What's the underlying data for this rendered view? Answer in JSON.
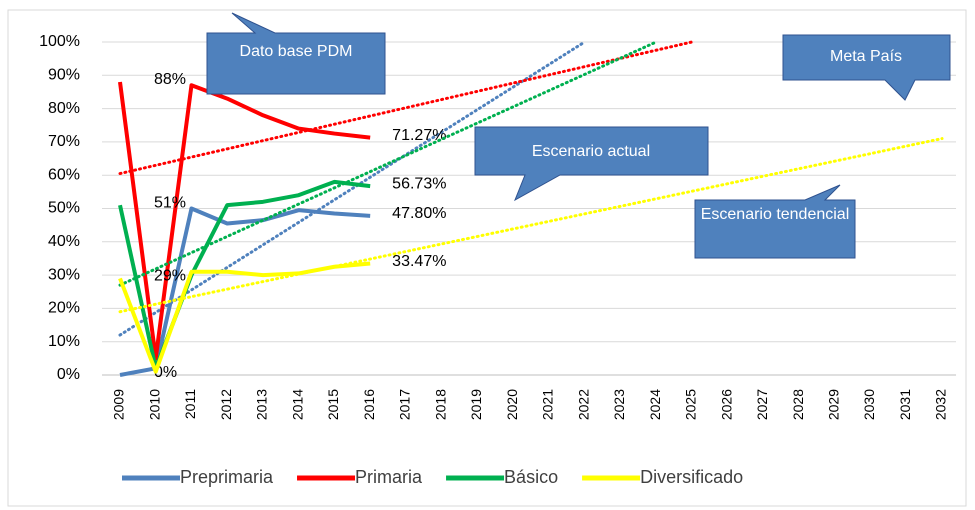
{
  "chart_data": {
    "type": "line",
    "categories": [
      "2009",
      "2010",
      "2011",
      "2012",
      "2013",
      "2014",
      "2015",
      "2016",
      "2017",
      "2018",
      "2019",
      "2020",
      "2021",
      "2022",
      "2023",
      "2024",
      "2025",
      "2026",
      "2027",
      "2028",
      "2029",
      "2030",
      "2031",
      "2032"
    ],
    "ylim": [
      0,
      100
    ],
    "yticks": [
      {
        "value": 0,
        "label": "0%"
      },
      {
        "value": 10,
        "label": "10%"
      },
      {
        "value": 20,
        "label": "20%"
      },
      {
        "value": 30,
        "label": "30%"
      },
      {
        "value": 40,
        "label": "40%"
      },
      {
        "value": 50,
        "label": "50%"
      },
      {
        "value": 60,
        "label": "60%"
      },
      {
        "value": 70,
        "label": "70%"
      },
      {
        "value": 80,
        "label": "80%"
      },
      {
        "value": 90,
        "label": "90%"
      },
      {
        "value": 100,
        "label": "100%"
      }
    ],
    "grid": true,
    "legend": "bottom",
    "series": [
      {
        "name": "Preprimaria",
        "color": "#4f81bd",
        "values": [
          0,
          2,
          50,
          45.5,
          46.5,
          49.5,
          48.5,
          47.8,
          null,
          null,
          null,
          null,
          null,
          null,
          null,
          null,
          null,
          null,
          null,
          null,
          null,
          null,
          null,
          null
        ],
        "value_labels": [
          "0%",
          null,
          null,
          null,
          null,
          null,
          null,
          "47.80%",
          null,
          null,
          null,
          null,
          null,
          null,
          null,
          null,
          null,
          null,
          null,
          null,
          null,
          null,
          null,
          null
        ],
        "trendline": {
          "x": [
            "2009",
            "2022"
          ],
          "values": [
            12,
            100
          ]
        }
      },
      {
        "name": "Primaria",
        "color": "#ff0000",
        "values": [
          88,
          5,
          87,
          83,
          78,
          74,
          72.5,
          71.27,
          null,
          null,
          null,
          null,
          null,
          null,
          null,
          null,
          null,
          null,
          null,
          null,
          null,
          null,
          null,
          null
        ],
        "value_labels": [
          "88%",
          null,
          null,
          null,
          null,
          null,
          null,
          "71.27%",
          null,
          null,
          null,
          null,
          null,
          null,
          null,
          null,
          null,
          null,
          null,
          null,
          null,
          null,
          null,
          null
        ],
        "trendline": {
          "x": [
            "2009",
            "2025"
          ],
          "values": [
            60.5,
            100
          ]
        }
      },
      {
        "name": "Básico",
        "color": "#00b050",
        "values": [
          51,
          2,
          30,
          51,
          52,
          54,
          58,
          56.73,
          null,
          null,
          null,
          null,
          null,
          null,
          null,
          null,
          null,
          null,
          null,
          null,
          null,
          null,
          null,
          null
        ],
        "value_labels": [
          "51%",
          null,
          null,
          null,
          null,
          null,
          null,
          "56.73%",
          null,
          null,
          null,
          null,
          null,
          null,
          null,
          null,
          null,
          null,
          null,
          null,
          null,
          null,
          null,
          null
        ],
        "trendline": {
          "x": [
            "2009",
            "2024"
          ],
          "values": [
            27,
            100
          ]
        }
      },
      {
        "name": "Diversificado",
        "color": "#ffff00",
        "values": [
          29,
          1,
          31,
          31,
          30,
          30.5,
          32.5,
          33.47,
          null,
          null,
          null,
          null,
          null,
          null,
          null,
          null,
          null,
          null,
          null,
          null,
          null,
          null,
          null,
          null
        ],
        "value_labels": [
          "29%",
          null,
          null,
          null,
          null,
          null,
          null,
          "33.47%",
          null,
          null,
          null,
          null,
          null,
          null,
          null,
          null,
          null,
          null,
          null,
          null,
          null,
          null,
          null,
          null
        ],
        "trendline": {
          "x": [
            "2009",
            "2032"
          ],
          "values": [
            19,
            71
          ]
        }
      }
    ],
    "annotations": [
      "Dato base PDM",
      "Meta  País",
      "Escenario actual",
      "Escenario tendencial"
    ]
  }
}
